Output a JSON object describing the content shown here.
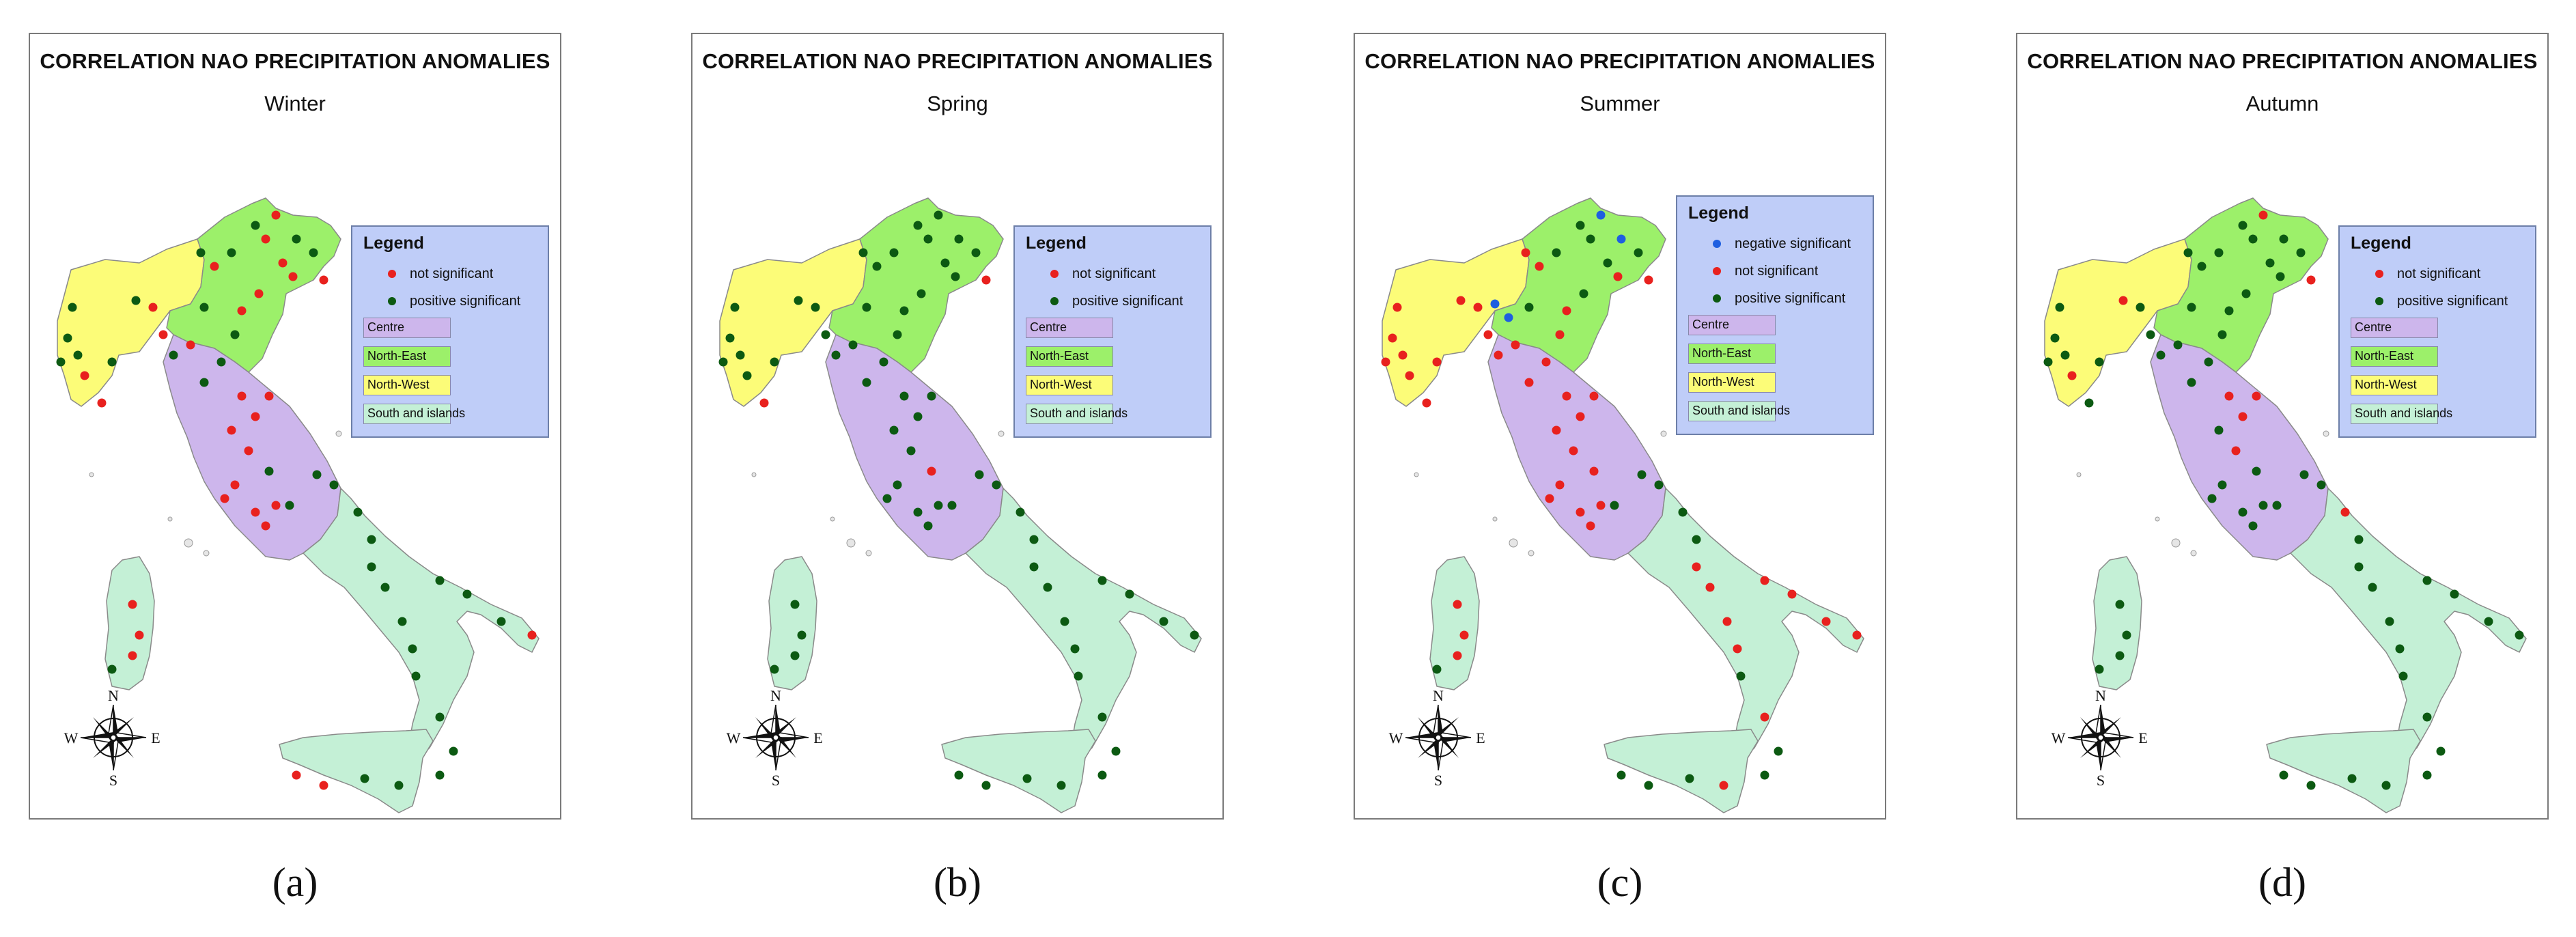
{
  "figure": {
    "panels": [
      {
        "id": "a",
        "title": "CORRELATION NAO PRECIPITATION ANOMALIES",
        "season": "Winter",
        "legend": {
          "title": "Legend",
          "points": [
            {
              "label": "not significant",
              "color": "#e8211e"
            },
            {
              "label": "positive significant",
              "color": "#0c5a12"
            }
          ],
          "regions": [
            {
              "label": "Centre",
              "color": "#cdb6ec"
            },
            {
              "label": "North-East",
              "color": "#9cf06a"
            },
            {
              "label": "North-West",
              "color": "#fcfc78"
            },
            {
              "label": "South and islands",
              "color": "#c4f0d6"
            }
          ]
        },
        "compass": {
          "n": "N",
          "s": "S",
          "e": "E",
          "w": "W"
        },
        "caption": "(a)"
      },
      {
        "id": "b",
        "title": "CORRELATION NAO PRECIPITATION ANOMALIES",
        "season": "Spring",
        "legend": {
          "title": "Legend",
          "points": [
            {
              "label": "not significant",
              "color": "#e8211e"
            },
            {
              "label": "positive significant",
              "color": "#0c5a12"
            }
          ],
          "regions": [
            {
              "label": "Centre",
              "color": "#cdb6ec"
            },
            {
              "label": "North-East",
              "color": "#9cf06a"
            },
            {
              "label": "North-West",
              "color": "#fcfc78"
            },
            {
              "label": "South and islands",
              "color": "#c4f0d6"
            }
          ]
        },
        "compass": {
          "n": "N",
          "s": "S",
          "e": "E",
          "w": "W"
        },
        "caption": "(b)"
      },
      {
        "id": "c",
        "title": "CORRELATION NAO PRECIPITATION ANOMALIES",
        "season": "Summer",
        "legend": {
          "title": "Legend",
          "points": [
            {
              "label": "negative significant",
              "color": "#1f5fe0"
            },
            {
              "label": "not significant",
              "color": "#e8211e"
            },
            {
              "label": "positive significant",
              "color": "#0c5a12"
            }
          ],
          "regions": [
            {
              "label": "Centre",
              "color": "#cdb6ec"
            },
            {
              "label": "North-East",
              "color": "#9cf06a"
            },
            {
              "label": "North-West",
              "color": "#fcfc78"
            },
            {
              "label": "South and islands",
              "color": "#c4f0d6"
            }
          ]
        },
        "compass": {
          "n": "N",
          "s": "S",
          "e": "E",
          "w": "W"
        },
        "caption": "(c)"
      },
      {
        "id": "d",
        "title": "CORRELATION NAO PRECIPITATION ANOMALIES",
        "season": "Autumn",
        "legend": {
          "title": "Legend",
          "points": [
            {
              "label": "not significant",
              "color": "#e8211e"
            },
            {
              "label": "positive significant",
              "color": "#0c5a12"
            }
          ],
          "regions": [
            {
              "label": "Centre",
              "color": "#cdb6ec"
            },
            {
              "label": "North-East",
              "color": "#9cf06a"
            },
            {
              "label": "North-West",
              "color": "#fcfc78"
            },
            {
              "label": "South and islands",
              "color": "#c4f0d6"
            }
          ]
        },
        "compass": {
          "n": "N",
          "s": "S",
          "e": "E",
          "w": "W"
        },
        "caption": "(d)"
      }
    ]
  }
}
